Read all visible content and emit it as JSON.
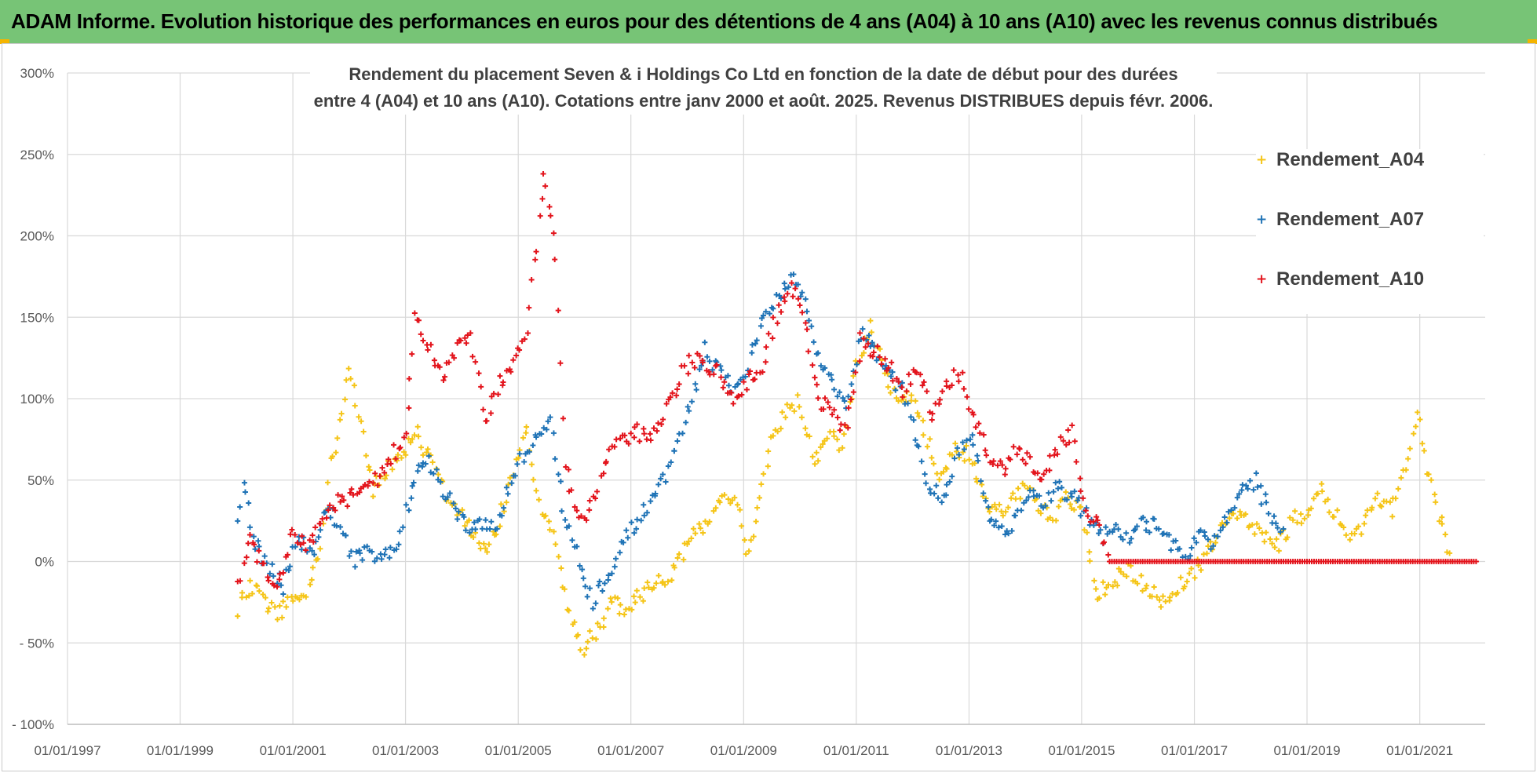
{
  "banner": {
    "title": "ADAM Informe. Evolution historique des performances en euros pour des détentions de 4 ans (A04) à 10 ans (A10) avec les revenus connus distribués"
  },
  "colors": {
    "banner_bg": "#77c476",
    "A04": "#f5c518",
    "A07": "#1f73b6",
    "A10": "#e3141c"
  },
  "chart_data": {
    "type": "scatter",
    "title_line1": "Rendement du placement Seven & i Holdings Co Ltd en fonction de la date de début pour des durées",
    "title_line2": "entre 4 (A04) et 10 ans (A10).  Cotations entre janv 2000 et août. 2025. Revenus DISTRIBUES depuis févr. 2006.",
    "xlim": [
      "1997-01-01",
      "2022-03-01"
    ],
    "x_ticks": [
      "01/01/1997",
      "01/01/1999",
      "01/01/2001",
      "01/01/2003",
      "01/01/2005",
      "01/01/2007",
      "01/01/2009",
      "01/01/2011",
      "01/01/2013",
      "01/01/2015",
      "01/01/2017",
      "01/01/2019",
      "01/01/2021"
    ],
    "ylim": [
      -100,
      300
    ],
    "y_ticks": [
      {
        "value": 300,
        "label": "300%"
      },
      {
        "value": 250,
        "label": "250%"
      },
      {
        "value": 200,
        "label": "200%"
      },
      {
        "value": 150,
        "label": "150%"
      },
      {
        "value": 100,
        "label": "100%"
      },
      {
        "value": 50,
        "label": "50%"
      },
      {
        "value": 0,
        "label": "0%"
      },
      {
        "value": -50,
        "label": "- 50%"
      },
      {
        "value": -100,
        "label": "- 100%"
      }
    ],
    "grid": true,
    "legend_position": "top-right",
    "series": [
      {
        "name": "Rendement_A04",
        "color": "#f5c518",
        "points": [
          [
            "2000-01-15",
            -30
          ],
          [
            "2000-04-01",
            -15
          ],
          [
            "2000-07-01",
            -25
          ],
          [
            "2000-10-01",
            -32
          ],
          [
            "2001-01-01",
            -22
          ],
          [
            "2001-04-01",
            -20
          ],
          [
            "2001-07-01",
            5
          ],
          [
            "2001-09-01",
            60
          ],
          [
            "2001-11-15",
            90
          ],
          [
            "2002-01-01",
            120
          ],
          [
            "2002-02-15",
            95
          ],
          [
            "2002-04-01",
            75
          ],
          [
            "2002-06-01",
            45
          ],
          [
            "2002-09-01",
            55
          ],
          [
            "2002-12-01",
            65
          ],
          [
            "2003-03-01",
            80
          ],
          [
            "2003-06-01",
            65
          ],
          [
            "2003-09-01",
            45
          ],
          [
            "2003-12-01",
            30
          ],
          [
            "2004-03-01",
            20
          ],
          [
            "2004-06-01",
            5
          ],
          [
            "2004-09-01",
            25
          ],
          [
            "2004-12-01",
            55
          ],
          [
            "2005-03-01",
            80
          ],
          [
            "2005-06-01",
            30
          ],
          [
            "2005-09-01",
            10
          ],
          [
            "2005-12-01",
            -35
          ],
          [
            "2006-03-01",
            -55
          ],
          [
            "2006-06-01",
            -40
          ],
          [
            "2006-09-01",
            -25
          ],
          [
            "2006-12-01",
            -30
          ],
          [
            "2007-03-01",
            -20
          ],
          [
            "2007-06-01",
            -15
          ],
          [
            "2007-09-01",
            -10
          ],
          [
            "2007-12-01",
            5
          ],
          [
            "2008-03-01",
            20
          ],
          [
            "2008-06-01",
            25
          ],
          [
            "2008-09-01",
            40
          ],
          [
            "2008-12-01",
            35
          ],
          [
            "2009-01-15",
            0
          ],
          [
            "2009-04-01",
            30
          ],
          [
            "2009-07-01",
            75
          ],
          [
            "2009-10-01",
            90
          ],
          [
            "2010-01-01",
            100
          ],
          [
            "2010-04-01",
            60
          ],
          [
            "2010-07-01",
            80
          ],
          [
            "2010-10-01",
            70
          ],
          [
            "2011-01-01",
            120
          ],
          [
            "2011-04-01",
            145
          ],
          [
            "2011-07-01",
            120
          ],
          [
            "2011-10-01",
            95
          ],
          [
            "2012-01-01",
            105
          ],
          [
            "2012-04-01",
            75
          ],
          [
            "2012-07-01",
            50
          ],
          [
            "2012-10-01",
            70
          ],
          [
            "2013-01-01",
            65
          ],
          [
            "2013-04-01",
            40
          ],
          [
            "2013-07-01",
            30
          ],
          [
            "2013-10-01",
            35
          ],
          [
            "2014-01-01",
            45
          ],
          [
            "2014-04-01",
            35
          ],
          [
            "2014-07-01",
            25
          ],
          [
            "2014-10-01",
            40
          ],
          [
            "2015-01-01",
            30
          ],
          [
            "2015-04-01",
            -20
          ],
          [
            "2015-07-01",
            -15
          ],
          [
            "2015-10-01",
            -5
          ],
          [
            "2016-01-01",
            -10
          ],
          [
            "2016-04-01",
            -20
          ],
          [
            "2016-07-01",
            -25
          ],
          [
            "2016-10-01",
            -15
          ],
          [
            "2017-01-01",
            -5
          ],
          [
            "2017-04-01",
            5
          ],
          [
            "2017-07-01",
            20
          ],
          [
            "2017-10-01",
            30
          ],
          [
            "2018-01-01",
            25
          ],
          [
            "2018-04-01",
            15
          ],
          [
            "2018-07-01",
            10
          ],
          [
            "2018-10-01",
            25
          ],
          [
            "2019-01-01",
            30
          ],
          [
            "2019-04-01",
            45
          ],
          [
            "2019-07-01",
            30
          ],
          [
            "2019-10-01",
            15
          ],
          [
            "2020-01-01",
            20
          ],
          [
            "2020-04-01",
            40
          ],
          [
            "2020-07-01",
            30
          ],
          [
            "2020-10-01",
            55
          ],
          [
            "2020-12-15",
            95
          ],
          [
            "2021-03-01",
            50
          ],
          [
            "2021-06-01",
            20
          ],
          [
            "2021-08-01",
            0
          ]
        ]
      },
      {
        "name": "Rendement_A07",
        "color": "#1f73b6",
        "points": [
          [
            "2000-01-15",
            20
          ],
          [
            "2000-02-15",
            45
          ],
          [
            "2000-05-01",
            10
          ],
          [
            "2000-08-01",
            -5
          ],
          [
            "2000-11-01",
            -15
          ],
          [
            "2001-02-01",
            15
          ],
          [
            "2001-05-01",
            5
          ],
          [
            "2001-08-01",
            30
          ],
          [
            "2001-11-01",
            25
          ],
          [
            "2002-02-01",
            0
          ],
          [
            "2002-05-01",
            5
          ],
          [
            "2002-08-01",
            0
          ],
          [
            "2002-11-01",
            10
          ],
          [
            "2003-02-01",
            40
          ],
          [
            "2003-05-01",
            65
          ],
          [
            "2003-08-01",
            50
          ],
          [
            "2003-11-01",
            35
          ],
          [
            "2004-02-01",
            20
          ],
          [
            "2004-05-01",
            25
          ],
          [
            "2004-08-01",
            20
          ],
          [
            "2004-11-01",
            45
          ],
          [
            "2005-02-01",
            65
          ],
          [
            "2005-05-01",
            75
          ],
          [
            "2005-08-01",
            85
          ],
          [
            "2005-11-01",
            25
          ],
          [
            "2006-02-01",
            0
          ],
          [
            "2006-05-01",
            -25
          ],
          [
            "2006-08-01",
            -10
          ],
          [
            "2006-11-01",
            10
          ],
          [
            "2007-02-01",
            25
          ],
          [
            "2007-05-01",
            35
          ],
          [
            "2007-08-01",
            50
          ],
          [
            "2007-11-01",
            75
          ],
          [
            "2008-02-01",
            100
          ],
          [
            "2008-05-01",
            130
          ],
          [
            "2008-08-01",
            115
          ],
          [
            "2008-11-01",
            105
          ],
          [
            "2009-02-01",
            120
          ],
          [
            "2009-05-01",
            150
          ],
          [
            "2009-08-01",
            160
          ],
          [
            "2009-11-01",
            175
          ],
          [
            "2010-02-01",
            160
          ],
          [
            "2010-05-01",
            125
          ],
          [
            "2010-08-01",
            110
          ],
          [
            "2010-11-01",
            95
          ],
          [
            "2011-02-01",
            140
          ],
          [
            "2011-05-01",
            130
          ],
          [
            "2011-08-01",
            115
          ],
          [
            "2011-11-01",
            105
          ],
          [
            "2012-02-01",
            70
          ],
          [
            "2012-05-01",
            45
          ],
          [
            "2012-08-01",
            40
          ],
          [
            "2012-11-01",
            70
          ],
          [
            "2013-02-01",
            75
          ],
          [
            "2013-05-01",
            30
          ],
          [
            "2013-08-01",
            20
          ],
          [
            "2013-11-01",
            25
          ],
          [
            "2014-02-01",
            45
          ],
          [
            "2014-05-01",
            35
          ],
          [
            "2014-08-01",
            45
          ],
          [
            "2014-11-01",
            40
          ],
          [
            "2015-02-01",
            30
          ],
          [
            "2015-05-01",
            15
          ],
          [
            "2015-08-01",
            20
          ],
          [
            "2015-11-01",
            15
          ],
          [
            "2016-02-01",
            25
          ],
          [
            "2016-05-01",
            20
          ],
          [
            "2016-08-01",
            10
          ],
          [
            "2016-11-01",
            5
          ],
          [
            "2017-02-01",
            15
          ],
          [
            "2017-05-01",
            10
          ],
          [
            "2017-08-01",
            25
          ],
          [
            "2017-11-01",
            45
          ],
          [
            "2018-02-01",
            50
          ],
          [
            "2018-05-01",
            30
          ],
          [
            "2018-08-01",
            20
          ]
        ]
      },
      {
        "name": "Rendement_A10",
        "color": "#e3141c",
        "points": [
          [
            "2000-01-15",
            -15
          ],
          [
            "2000-04-01",
            15
          ],
          [
            "2000-07-01",
            -5
          ],
          [
            "2000-10-01",
            -15
          ],
          [
            "2001-01-01",
            20
          ],
          [
            "2001-04-01",
            10
          ],
          [
            "2001-07-01",
            20
          ],
          [
            "2001-10-01",
            35
          ],
          [
            "2002-01-01",
            40
          ],
          [
            "2002-04-01",
            45
          ],
          [
            "2002-07-01",
            50
          ],
          [
            "2002-10-01",
            65
          ],
          [
            "2003-01-01",
            75
          ],
          [
            "2003-03-01",
            150
          ],
          [
            "2003-06-01",
            135
          ],
          [
            "2003-09-01",
            115
          ],
          [
            "2003-12-01",
            130
          ],
          [
            "2004-03-01",
            140
          ],
          [
            "2004-06-01",
            85
          ],
          [
            "2004-09-01",
            110
          ],
          [
            "2004-12-01",
            120
          ],
          [
            "2005-03-01",
            145
          ],
          [
            "2005-05-01",
            195
          ],
          [
            "2005-06-15",
            235
          ],
          [
            "2005-09-01",
            190
          ],
          [
            "2005-11-01",
            60
          ],
          [
            "2006-02-01",
            25
          ],
          [
            "2006-05-01",
            35
          ],
          [
            "2006-08-01",
            65
          ],
          [
            "2006-11-01",
            75
          ],
          [
            "2007-02-01",
            80
          ],
          [
            "2007-05-01",
            75
          ],
          [
            "2007-08-01",
            90
          ],
          [
            "2007-11-01",
            110
          ],
          [
            "2008-02-01",
            125
          ],
          [
            "2008-05-01",
            120
          ],
          [
            "2008-08-01",
            115
          ],
          [
            "2008-11-01",
            95
          ],
          [
            "2009-02-01",
            110
          ],
          [
            "2009-05-01",
            120
          ],
          [
            "2009-08-01",
            150
          ],
          [
            "2009-11-01",
            170
          ],
          [
            "2010-02-01",
            150
          ],
          [
            "2010-05-01",
            100
          ],
          [
            "2010-08-01",
            90
          ],
          [
            "2010-11-01",
            80
          ],
          [
            "2011-02-01",
            135
          ],
          [
            "2011-05-01",
            130
          ],
          [
            "2011-08-01",
            120
          ],
          [
            "2011-11-01",
            105
          ],
          [
            "2012-02-01",
            120
          ],
          [
            "2012-05-01",
            90
          ],
          [
            "2012-08-01",
            110
          ],
          [
            "2012-11-01",
            115
          ],
          [
            "2013-02-01",
            90
          ],
          [
            "2013-05-01",
            65
          ],
          [
            "2013-08-01",
            55
          ],
          [
            "2013-11-01",
            70
          ],
          [
            "2014-02-01",
            60
          ],
          [
            "2014-05-01",
            50
          ],
          [
            "2014-08-01",
            70
          ],
          [
            "2014-11-01",
            80
          ],
          [
            "2015-02-01",
            30
          ],
          [
            "2015-05-01",
            20
          ],
          [
            "2015-07-01",
            0
          ],
          [
            "2016-01-01",
            0
          ],
          [
            "2017-01-01",
            0
          ],
          [
            "2018-01-01",
            0
          ],
          [
            "2019-01-01",
            0
          ],
          [
            "2020-01-01",
            0
          ],
          [
            "2021-01-01",
            0
          ],
          [
            "2022-01-01",
            0
          ]
        ]
      }
    ]
  }
}
